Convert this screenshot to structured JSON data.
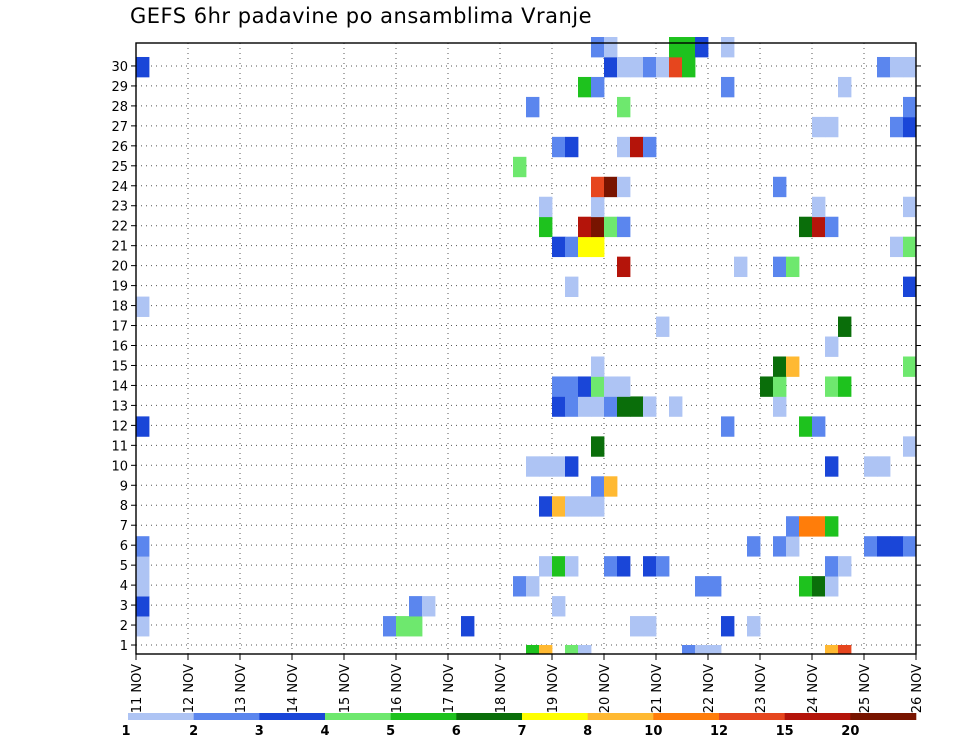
{
  "chart_data": {
    "type": "heatmap",
    "title": "GEFS 6hr padavine po ansamblima Vranje",
    "xlabel": "",
    "ylabel": "",
    "x_ticks": [
      "11 NOV",
      "12 NOV",
      "13 NOV",
      "14 NOV",
      "15 NOV",
      "16 NOV",
      "17 NOV",
      "18 NOV",
      "19 NOV",
      "20 NOV",
      "21 NOV",
      "22 NOV",
      "23 NOV",
      "24 NOV",
      "25 NOV",
      "26 NOV"
    ],
    "y_ticks": [
      "1",
      "2",
      "3",
      "4",
      "5",
      "6",
      "7",
      "8",
      "9",
      "10",
      "11",
      "12",
      "13",
      "14",
      "15",
      "16",
      "17",
      "18",
      "19",
      "20",
      "21",
      "22",
      "23",
      "24",
      "25",
      "26",
      "27",
      "28",
      "29",
      "30"
    ],
    "x_range": [
      0,
      60
    ],
    "y_range": [
      0,
      30
    ],
    "grid": "dotted",
    "legend_placement": "bottom",
    "legend": {
      "labels": [
        "1",
        "2",
        "3",
        "4",
        "5",
        "6",
        "7",
        "8",
        "10",
        "12",
        "15",
        "20"
      ],
      "colors": [
        "#aec4f4",
        "#5b86ee",
        "#1a46d8",
        "#6ee86e",
        "#1ec21e",
        "#0a6e0a",
        "#ffff00",
        "#ffb932",
        "#ff7d0a",
        "#e6461e",
        "#b4140a",
        "#781400"
      ]
    },
    "values_note": "cells: [member, 6h step index from 11 NOV 00UTC, colour class 1-12]",
    "cells": [
      [
        0,
        30,
        5
      ],
      [
        0,
        31,
        8
      ],
      [
        0,
        33,
        4
      ],
      [
        0,
        34,
        1
      ],
      [
        0,
        42,
        2
      ],
      [
        0,
        43,
        1
      ],
      [
        0,
        44,
        1
      ],
      [
        0,
        53,
        8
      ],
      [
        0,
        54,
        10
      ],
      [
        1,
        0,
        1
      ],
      [
        1,
        19,
        2
      ],
      [
        1,
        20,
        4
      ],
      [
        1,
        21,
        4
      ],
      [
        1,
        25,
        3
      ],
      [
        1,
        38,
        1
      ],
      [
        1,
        39,
        1
      ],
      [
        1,
        45,
        3
      ],
      [
        1,
        47,
        1
      ],
      [
        2,
        0,
        3
      ],
      [
        2,
        21,
        2
      ],
      [
        2,
        22,
        1
      ],
      [
        2,
        32,
        1
      ],
      [
        3,
        0,
        1
      ],
      [
        3,
        29,
        2
      ],
      [
        3,
        30,
        1
      ],
      [
        3,
        43,
        2
      ],
      [
        3,
        44,
        2
      ],
      [
        3,
        51,
        5
      ],
      [
        3,
        52,
        6
      ],
      [
        3,
        53,
        1
      ],
      [
        4,
        0,
        1
      ],
      [
        4,
        31,
        1
      ],
      [
        4,
        32,
        5
      ],
      [
        4,
        33,
        1
      ],
      [
        4,
        36,
        2
      ],
      [
        4,
        37,
        3
      ],
      [
        4,
        39,
        3
      ],
      [
        4,
        40,
        2
      ],
      [
        4,
        53,
        2
      ],
      [
        4,
        54,
        1
      ],
      [
        5,
        0,
        2
      ],
      [
        5,
        47,
        2
      ],
      [
        5,
        49,
        2
      ],
      [
        5,
        50,
        1
      ],
      [
        5,
        56,
        2
      ],
      [
        5,
        57,
        3
      ],
      [
        5,
        58,
        3
      ],
      [
        5,
        59,
        2
      ],
      [
        6,
        50,
        2
      ],
      [
        6,
        51,
        9
      ],
      [
        6,
        52,
        9
      ],
      [
        6,
        53,
        5
      ],
      [
        7,
        31,
        3
      ],
      [
        7,
        32,
        8
      ],
      [
        7,
        33,
        1
      ],
      [
        7,
        34,
        1
      ],
      [
        7,
        35,
        1
      ],
      [
        8,
        35,
        2
      ],
      [
        8,
        36,
        8
      ],
      [
        9,
        30,
        1
      ],
      [
        9,
        31,
        1
      ],
      [
        9,
        32,
        1
      ],
      [
        9,
        33,
        3
      ],
      [
        9,
        53,
        3
      ],
      [
        9,
        56,
        1
      ],
      [
        9,
        57,
        1
      ],
      [
        10,
        35,
        6
      ],
      [
        10,
        59,
        1
      ],
      [
        11,
        0,
        3
      ],
      [
        11,
        45,
        2
      ],
      [
        11,
        51,
        5
      ],
      [
        11,
        52,
        2
      ],
      [
        12,
        32,
        3
      ],
      [
        12,
        33,
        2
      ],
      [
        12,
        34,
        1
      ],
      [
        12,
        35,
        1
      ],
      [
        12,
        36,
        2
      ],
      [
        12,
        37,
        6
      ],
      [
        12,
        38,
        6
      ],
      [
        12,
        39,
        1
      ],
      [
        12,
        41,
        1
      ],
      [
        12,
        49,
        1
      ],
      [
        13,
        32,
        2
      ],
      [
        13,
        33,
        2
      ],
      [
        13,
        34,
        3
      ],
      [
        13,
        35,
        4
      ],
      [
        13,
        36,
        1
      ],
      [
        13,
        37,
        1
      ],
      [
        13,
        48,
        6
      ],
      [
        13,
        49,
        4
      ],
      [
        13,
        53,
        4
      ],
      [
        13,
        54,
        5
      ],
      [
        14,
        35,
        1
      ],
      [
        14,
        49,
        6
      ],
      [
        14,
        50,
        8
      ],
      [
        14,
        59,
        4
      ],
      [
        15,
        53,
        1
      ],
      [
        16,
        40,
        1
      ],
      [
        16,
        54,
        6
      ],
      [
        17,
        0,
        1
      ],
      [
        18,
        33,
        1
      ],
      [
        18,
        59,
        3
      ],
      [
        19,
        37,
        11
      ],
      [
        19,
        46,
        1
      ],
      [
        19,
        49,
        2
      ],
      [
        19,
        50,
        4
      ],
      [
        20,
        32,
        3
      ],
      [
        20,
        33,
        2
      ],
      [
        20,
        34,
        7
      ],
      [
        20,
        35,
        7
      ],
      [
        20,
        58,
        1
      ],
      [
        20,
        59,
        4
      ],
      [
        21,
        31,
        5
      ],
      [
        21,
        34,
        11
      ],
      [
        21,
        35,
        12
      ],
      [
        21,
        36,
        4
      ],
      [
        21,
        37,
        2
      ],
      [
        21,
        51,
        6
      ],
      [
        21,
        52,
        11
      ],
      [
        21,
        53,
        2
      ],
      [
        22,
        31,
        1
      ],
      [
        22,
        35,
        1
      ],
      [
        22,
        52,
        1
      ],
      [
        22,
        59,
        1
      ],
      [
        23,
        35,
        10
      ],
      [
        23,
        36,
        12
      ],
      [
        23,
        37,
        1
      ],
      [
        23,
        49,
        2
      ],
      [
        24,
        29,
        4
      ],
      [
        25,
        32,
        2
      ],
      [
        25,
        33,
        3
      ],
      [
        25,
        37,
        1
      ],
      [
        25,
        38,
        11
      ],
      [
        25,
        39,
        2
      ],
      [
        26,
        52,
        1
      ],
      [
        26,
        53,
        1
      ],
      [
        26,
        58,
        2
      ],
      [
        26,
        59,
        3
      ],
      [
        27,
        30,
        2
      ],
      [
        27,
        37,
        4
      ],
      [
        27,
        59,
        2
      ],
      [
        28,
        34,
        5
      ],
      [
        28,
        35,
        2
      ],
      [
        28,
        45,
        2
      ],
      [
        28,
        54,
        1
      ],
      [
        29,
        0,
        3
      ],
      [
        29,
        36,
        3
      ],
      [
        29,
        37,
        1
      ],
      [
        29,
        38,
        1
      ],
      [
        29,
        39,
        2
      ],
      [
        29,
        40,
        1
      ],
      [
        29,
        41,
        10
      ],
      [
        29,
        42,
        5
      ],
      [
        29,
        57,
        2
      ],
      [
        29,
        58,
        1
      ],
      [
        29,
        59,
        1
      ],
      [
        30,
        35,
        2
      ],
      [
        30,
        36,
        1
      ],
      [
        30,
        41,
        5
      ],
      [
        30,
        42,
        5
      ],
      [
        30,
        43,
        3
      ],
      [
        30,
        45,
        1
      ]
    ]
  }
}
